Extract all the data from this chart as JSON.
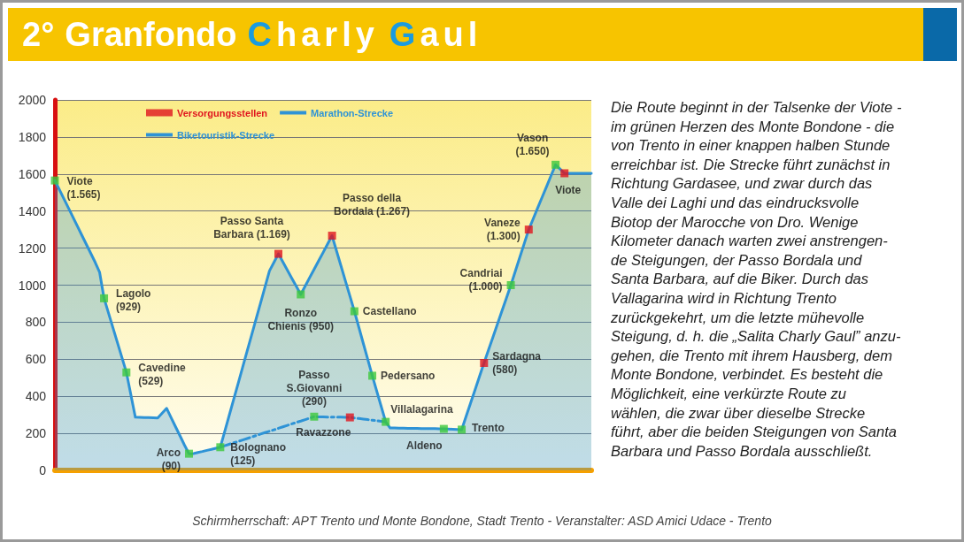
{
  "chart_data": {
    "type": "area",
    "title": "2° Granfondo Charly Gaul",
    "categories": [
      null,
      null,
      null,
      null,
      null,
      null,
      null,
      null,
      null,
      null,
      null,
      null,
      null,
      null,
      null,
      null,
      null,
      null,
      null,
      null,
      null,
      null,
      null,
      null,
      null,
      null,
      null,
      null,
      null,
      null,
      null,
      null,
      null,
      null,
      null,
      null,
      null,
      null,
      null,
      null,
      null,
      null,
      null,
      null,
      null,
      null,
      null,
      null,
      null,
      null,
      null,
      null,
      null,
      null,
      null,
      null,
      null,
      null,
      null,
      null,
      null,
      null,
      null,
      null,
      null,
      null,
      null,
      null,
      null,
      null,
      null,
      null,
      null,
      null,
      null,
      null,
      null,
      null,
      null,
      null,
      null,
      null,
      null,
      null,
      null,
      null,
      null,
      null,
      null,
      null,
      null,
      null,
      null,
      null,
      null,
      null,
      null,
      null,
      null,
      null,
      null,
      null,
      null,
      null,
      null,
      null,
      null,
      null,
      null,
      null,
      null,
      null,
      null,
      null,
      null,
      null,
      null,
      null,
      null,
      null,
      null
    ],
    "series": [
      {
        "name": "Versorgungsstellen",
        "type": "scatter",
        "color": "#e0141e",
        "marker": "square",
        "values": [
          null,
          null,
          null,
          null,
          null,
          null,
          null,
          null,
          null,
          null,
          null,
          null,
          null,
          null,
          null,
          null,
          null,
          null,
          null,
          null,
          null,
          null,
          null,
          null,
          null,
          null,
          null,
          null,
          null,
          null,
          null,
          null,
          null,
          null,
          null,
          null,
          null,
          null,
          null,
          null,
          null,
          null,
          null,
          null,
          null,
          null,
          null,
          null,
          null,
          null,
          1169,
          null,
          null,
          null,
          null,
          null,
          null,
          null,
          null,
          null,
          null,
          null,
          1267,
          null,
          null,
          null,
          286,
          null,
          null,
          null,
          null,
          null,
          null,
          null,
          null,
          null,
          null,
          null,
          null,
          null,
          null,
          null,
          null,
          null,
          null,
          null,
          null,
          null,
          null,
          null,
          null,
          null,
          null,
          null,
          null,
          null,
          580,
          null,
          null,
          null,
          null,
          null,
          null,
          null,
          null,
          null,
          1300,
          null,
          null,
          null,
          null,
          null,
          null,
          null,
          1604,
          null,
          null,
          null,
          null,
          null,
          null
        ],
        "value_labels": [
          null,
          null,
          null,
          null,
          null,
          null,
          null,
          null,
          null,
          null,
          null,
          null,
          null,
          null,
          null,
          null,
          null,
          null,
          null,
          null,
          null,
          null,
          null,
          null,
          null,
          null,
          null,
          null,
          null,
          null,
          null,
          null,
          null,
          null,
          null,
          null,
          null,
          null,
          null,
          null,
          null,
          null,
          null,
          null,
          null,
          null,
          null,
          null,
          null,
          null,
          "Passo Santa\nBarbara (1.169)",
          null,
          null,
          null,
          null,
          null,
          null,
          null,
          null,
          null,
          null,
          null,
          "Passo della\nBordala (1.267)",
          null,
          null,
          null,
          "Ravazzone",
          null,
          null,
          null,
          null,
          null,
          null,
          null,
          null,
          null,
          null,
          null,
          null,
          null,
          null,
          null,
          null,
          null,
          null,
          null,
          null,
          null,
          null,
          null,
          null,
          null,
          null,
          null,
          null,
          null,
          "Sardagna\n(580)",
          null,
          null,
          null,
          null,
          null,
          null,
          null,
          null,
          null,
          "Vaneze\n(1.300)",
          null,
          null,
          null,
          null,
          null,
          null,
          null,
          "Viote",
          null,
          null,
          null,
          null,
          null,
          null
        ]
      },
      {
        "name": "Marathon-Strecke",
        "color": "#2e93d6",
        "marker": "none",
        "line_style": "solid",
        "values": [
          1565,
          1516,
          1467,
          1418,
          1369,
          1320,
          1271,
          1222,
          1173,
          1124,
          1070,
          929,
          849,
          769,
          689,
          609,
          529,
          408,
          287,
          286,
          285,
          285,
          284,
          283,
          309,
          335,
          285,
          235,
          186,
          136,
          90,
          91,
          97,
          102,
          108,
          113,
          119,
          125,
          211,
          297,
          384,
          470,
          557,
          644,
          730,
          817,
          903,
          990,
          1077,
          1123,
          1169,
          1125,
          1081,
          1037,
          994,
          950,
          995,
          1041,
          1086,
          1131,
          1176,
          1222,
          1267,
          1185,
          1104,
          1022,
          941,
          859,
          772,
          685,
          598,
          511,
          428,
          345,
          262,
          229,
          229,
          228,
          228,
          227,
          227,
          227,
          226,
          226,
          225,
          225,
          224,
          224,
          223,
          222,
          221,
          220,
          292,
          364,
          436,
          508,
          580,
          650,
          720,
          790,
          860,
          930,
          1000,
          1075,
          1150,
          1225,
          1300,
          1358,
          1417,
          1475,
          1533,
          1592,
          1650,
          1627,
          1604,
          1604,
          1604,
          1604,
          1604,
          1604,
          1604
        ]
      },
      {
        "name": "Biketouristik-Strecke",
        "type": "line",
        "color": "#2e93d6",
        "marker": "none",
        "line_style": "dashed",
        "values": [
          null,
          null,
          null,
          null,
          null,
          null,
          null,
          null,
          null,
          null,
          null,
          null,
          null,
          null,
          null,
          null,
          null,
          null,
          null,
          null,
          null,
          null,
          null,
          null,
          null,
          null,
          null,
          null,
          null,
          null,
          null,
          null,
          null,
          null,
          null,
          null,
          null,
          125,
          133,
          141,
          149,
          156,
          164,
          172,
          180,
          188,
          196,
          204,
          211,
          219,
          227,
          235,
          243,
          251,
          259,
          266,
          274,
          282,
          290,
          289,
          289,
          288,
          288,
          287,
          287,
          286,
          286,
          283,
          280,
          277,
          274,
          271,
          268,
          265,
          262,
          null,
          null,
          null,
          null,
          null,
          null,
          null,
          null,
          null,
          null,
          null,
          null,
          null,
          null,
          null,
          null,
          null,
          null,
          null,
          null,
          null,
          null,
          null,
          null,
          null,
          null,
          null,
          null,
          null,
          null,
          null,
          null,
          null,
          null,
          null,
          null,
          null,
          null,
          null,
          null,
          null,
          null,
          null,
          null,
          null,
          null
        ]
      },
      {
        "type": "scatter",
        "color": "#3cc83c",
        "marker": "square",
        "values": [
          1565,
          null,
          null,
          null,
          null,
          null,
          null,
          null,
          null,
          null,
          null,
          929,
          null,
          null,
          null,
          null,
          529,
          null,
          null,
          null,
          null,
          null,
          null,
          null,
          null,
          null,
          null,
          null,
          null,
          null,
          90,
          null,
          null,
          null,
          null,
          null,
          null,
          125,
          null,
          null,
          null,
          null,
          null,
          null,
          null,
          null,
          null,
          null,
          null,
          null,
          null,
          null,
          null,
          null,
          null,
          950,
          null,
          null,
          290,
          null,
          null,
          null,
          null,
          null,
          null,
          null,
          null,
          859,
          null,
          null,
          null,
          511,
          null,
          null,
          262,
          null,
          null,
          null,
          null,
          null,
          null,
          null,
          null,
          null,
          null,
          null,
          null,
          224,
          null,
          null,
          null,
          220,
          null,
          null,
          null,
          null,
          null,
          null,
          null,
          null,
          null,
          null,
          1000,
          null,
          null,
          null,
          null,
          null,
          null,
          null,
          null,
          null,
          1650,
          null,
          null,
          null,
          null,
          null,
          null,
          null,
          null
        ],
        "value_labels": [
          "Viote\n(1.565)",
          null,
          null,
          null,
          null,
          null,
          null,
          null,
          null,
          null,
          null,
          "Lagolo\n(929)",
          null,
          null,
          null,
          null,
          "Cavedine\n(529)",
          null,
          null,
          null,
          null,
          null,
          null,
          null,
          null,
          null,
          null,
          null,
          null,
          null,
          "Arco\n(90)",
          null,
          null,
          null,
          null,
          null,
          null,
          "Bolognano\n(125)",
          null,
          null,
          null,
          null,
          null,
          null,
          null,
          null,
          null,
          null,
          null,
          null,
          null,
          null,
          null,
          null,
          null,
          "Ronzo\nChienis (950)",
          null,
          null,
          "Passo\nS.Giovanni\n(290)",
          null,
          null,
          null,
          null,
          null,
          null,
          null,
          null,
          "Castellano",
          null,
          null,
          null,
          "Pedersano",
          null,
          null,
          "Villalagarina",
          null,
          null,
          null,
          null,
          null,
          null,
          null,
          null,
          null,
          null,
          null,
          null,
          "Aldeno",
          null,
          null,
          null,
          "Trento",
          null,
          null,
          null,
          null,
          null,
          null,
          null,
          null,
          null,
          null,
          "Candriai\n(1.000)",
          null,
          null,
          null,
          null,
          null,
          null,
          null,
          null,
          null,
          "Vason\n(1.650)",
          null,
          null,
          null,
          null,
          null,
          null,
          null,
          null
        ]
      }
    ],
    "ylim": [
      0,
      2000
    ],
    "yticks": [
      0,
      200,
      400,
      600,
      800,
      1000,
      1200,
      1400,
      1600,
      1800,
      2000
    ],
    "grid": "y",
    "legend": "top",
    "tick_labels": "y",
    "annotations": [
      "Die Route beginnt in der Talsenke der Viote -\nim grünen Herzen des Monte Bondone - die\nvon Trento in einer knappen halben Stunde\nerreichbar ist. Die Strecke führt zunächst in\nRichtung Gardasee, und zwar durch das\nValle dei Laghi und das eindrucksvolle\nBiotop der Marocche von Dro. Wenige\nKilometer danach warten zwei anstrengen-\nde Steigungen, der Passo Bordala und\nSanta Barbara, auf die Biker. Durch das\nVallagarina wird in Richtung Trento\nzurückgekehrt, um die letzte mühevolle\nSteigung, d. h. die „Salita Charly Gaul” anzu-\ngehen, die Trento mit ihrem Hausberg, dem\nMonte Bondone, verbindet. Es besteht die\nMöglichkeit, eine verkürzte Route zu\nwählen, die zwar über dieselbe Strecke\nführt, aber die beiden Steigungen von Santa\nBarbara und Passo Bordala ausschließt.",
      "Schirmherrschaft: APT Trento und Monte Bondone, Stadt Trento - Veranstalter: ASD Amici Udace - Trento"
    ]
  }
}
